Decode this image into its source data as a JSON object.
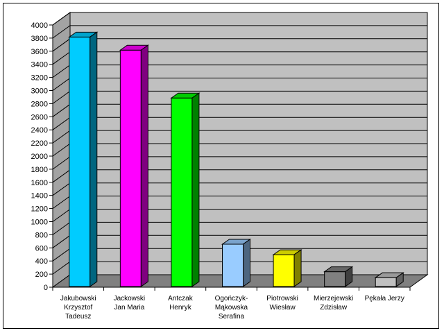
{
  "chart_data": {
    "type": "bar",
    "style": "3d-column",
    "title": "",
    "xlabel": "",
    "ylabel": "",
    "ylim": [
      0,
      4000
    ],
    "ytick_step": 200,
    "yticks": [
      "0",
      "200",
      "400",
      "600",
      "800",
      "1000",
      "1200",
      "1400",
      "1600",
      "1800",
      "2000",
      "2200",
      "2400",
      "2600",
      "2800",
      "3000",
      "3200",
      "3400",
      "3600",
      "3800",
      "4000"
    ],
    "grid": true,
    "legend": "none",
    "categories": [
      [
        "Jakubowski",
        "Krzysztof",
        "Tadeusz"
      ],
      [
        "Jackowski",
        "Jan Maria"
      ],
      [
        "Antczak",
        "Henryk"
      ],
      [
        "Ogończyk-",
        "Mąkowska",
        "Serafina"
      ],
      [
        "Piotrowski",
        "Wiesław"
      ],
      [
        "Mierzejewski",
        "Zdzisław"
      ],
      [
        "Pękała Jerzy"
      ]
    ],
    "values": [
      3880,
      3680,
      2950,
      720,
      560,
      300,
      210
    ],
    "colors": [
      "#00ccff",
      "#ff00ff",
      "#00ff00",
      "#99ccff",
      "#ffff00",
      "#808080",
      "#c0c0c0"
    ],
    "wall_color": "#c0c0c0",
    "floor_color": "#808080"
  }
}
